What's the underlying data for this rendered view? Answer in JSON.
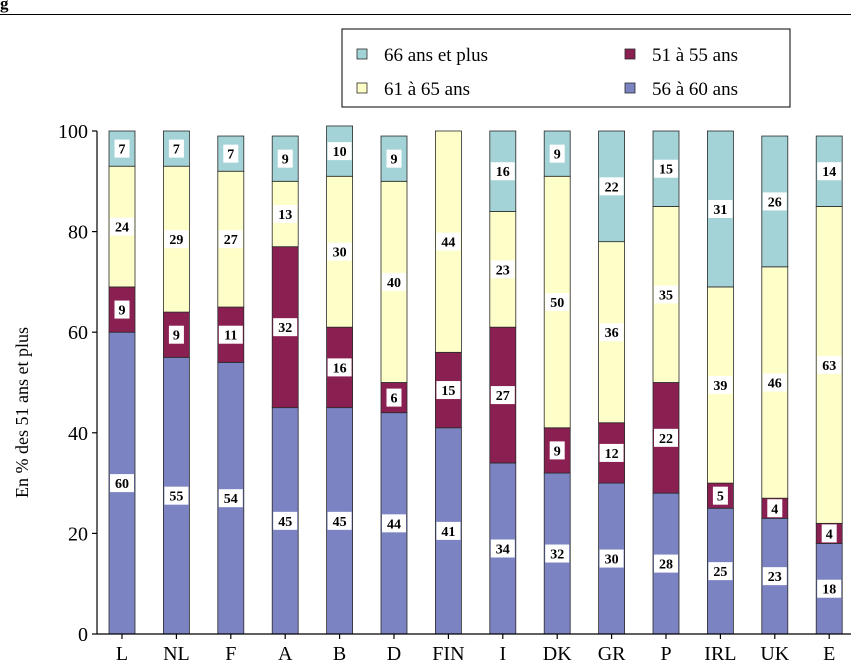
{
  "heading_fragment": "g",
  "chart_data": {
    "type": "bar",
    "stacked": true,
    "categories": [
      "L",
      "NL",
      "F",
      "A",
      "B",
      "D",
      "FIN",
      "I",
      "DK",
      "GR",
      "P",
      "IRL",
      "UK",
      "E"
    ],
    "series": [
      {
        "name": "56 à 60 ans",
        "color": "#7b83c3",
        "values": [
          60,
          55,
          54,
          45,
          45,
          44,
          41,
          34,
          32,
          30,
          28,
          25,
          23,
          18
        ]
      },
      {
        "name": "51 à 55 ans",
        "color": "#8a1f52",
        "values": [
          9,
          9,
          11,
          32,
          16,
          6,
          15,
          27,
          9,
          12,
          22,
          5,
          4,
          4
        ]
      },
      {
        "name": "61 à 65 ans",
        "color": "#fefec8",
        "values": [
          24,
          29,
          27,
          13,
          30,
          40,
          44,
          23,
          50,
          36,
          35,
          39,
          46,
          63
        ]
      },
      {
        "name": "66 ans et plus",
        "color": "#a3d3d7",
        "values": [
          7,
          7,
          7,
          9,
          10,
          9,
          0,
          16,
          9,
          22,
          15,
          31,
          26,
          14
        ]
      }
    ],
    "data_labels": [
      [
        "60",
        "9",
        "24",
        "7"
      ],
      [
        "55",
        "9",
        "29",
        "7"
      ],
      [
        "54",
        "11",
        "27",
        "7"
      ],
      [
        "45",
        "32",
        "13",
        "9"
      ],
      [
        "45",
        "16",
        "30",
        "10"
      ],
      [
        "44",
        "6",
        "40",
        "9"
      ],
      [
        "41",
        "15",
        "44",
        ""
      ],
      [
        "34",
        "27",
        "23",
        "16"
      ],
      [
        "32",
        "9",
        "50",
        "9"
      ],
      [
        "30",
        "12",
        "36",
        "22"
      ],
      [
        "28",
        "22",
        "35",
        "15"
      ],
      [
        "25",
        "5",
        "39",
        "31"
      ],
      [
        "23",
        "4",
        "46",
        "26"
      ],
      [
        "18",
        "4",
        "63",
        "14"
      ]
    ],
    "ylabel": "En % des 51 ans et plus",
    "ylim": [
      0,
      100
    ],
    "yticks": [
      0,
      20,
      40,
      60,
      80,
      100
    ],
    "legend": {
      "placement": "top-right",
      "entries": [
        {
          "label": "66 ans et plus",
          "series": 3
        },
        {
          "label": "51 à 55 ans",
          "series": 1
        },
        {
          "label": "61 à 65 ans",
          "series": 2
        },
        {
          "label": "56 à 60 ans",
          "series": 0
        }
      ]
    },
    "grid": false
  }
}
